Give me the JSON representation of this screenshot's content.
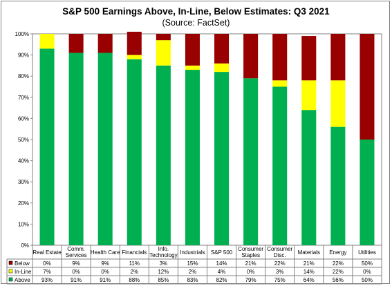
{
  "chart_data": {
    "type": "bar",
    "stacked": true,
    "title": "S&P 500 Earnings Above, In-Line, Below Estimates: Q3 2021",
    "subtitle": "(Source: FactSet)",
    "categories": [
      "Real Estate",
      "Comm. Services",
      "Health Care",
      "Financials",
      "Info. Technology",
      "Industrials",
      "S&P 500",
      "Consumer Staples",
      "Consumer Disc.",
      "Materials",
      "Energy",
      "Utilities"
    ],
    "category_lines": [
      [
        "Real Estate"
      ],
      [
        "Comm.",
        "Services"
      ],
      [
        "Health Care"
      ],
      [
        "Financials"
      ],
      [
        "Info.",
        "Technology"
      ],
      [
        "Industrials"
      ],
      [
        "S&P 500"
      ],
      [
        "Consumer",
        "Staples"
      ],
      [
        "Consumer",
        "Disc."
      ],
      [
        "Materials"
      ],
      [
        "Energy"
      ],
      [
        "Utilities"
      ]
    ],
    "series": [
      {
        "name": "Above",
        "color": "#00b050",
        "values": [
          93,
          91,
          91,
          88,
          85,
          83,
          82,
          79,
          75,
          64,
          56,
          50
        ]
      },
      {
        "name": "In-Line",
        "color": "#ffff00",
        "values": [
          7,
          0,
          0,
          2,
          12,
          2,
          4,
          0,
          3,
          14,
          22,
          0
        ]
      },
      {
        "name": "Below",
        "color": "#990000",
        "values": [
          0,
          9,
          9,
          11,
          3,
          15,
          14,
          21,
          22,
          21,
          22,
          50
        ]
      }
    ],
    "table_rows": [
      {
        "name": "Below",
        "color": "#990000",
        "labels": [
          "0%",
          "9%",
          "9%",
          "11%",
          "3%",
          "15%",
          "14%",
          "21%",
          "22%",
          "21%",
          "22%",
          "50%"
        ]
      },
      {
        "name": "In-Line",
        "color": "#ffff00",
        "labels": [
          "7%",
          "0%",
          "0%",
          "2%",
          "12%",
          "2%",
          "4%",
          "0%",
          "3%",
          "14%",
          "22%",
          "0%"
        ]
      },
      {
        "name": "Above",
        "color": "#00b050",
        "labels": [
          "93%",
          "91%",
          "91%",
          "88%",
          "85%",
          "83%",
          "82%",
          "79%",
          "75%",
          "64%",
          "56%",
          "50%"
        ]
      }
    ],
    "y_ticks": [
      "0%",
      "10%",
      "20%",
      "30%",
      "40%",
      "50%",
      "60%",
      "70%",
      "80%",
      "90%",
      "100%"
    ],
    "ylim": [
      0,
      100
    ],
    "grid": false,
    "legend": "data-table"
  }
}
